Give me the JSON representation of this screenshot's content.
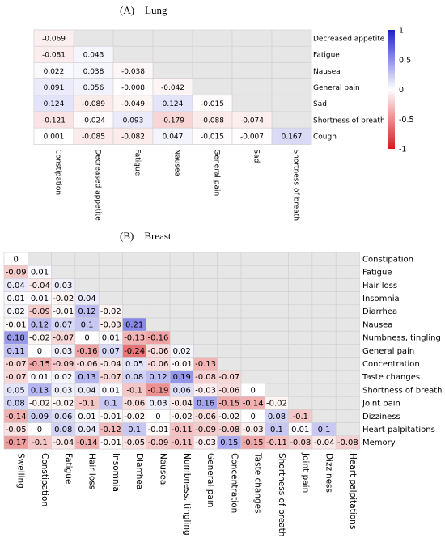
{
  "colors": {
    "negative": "#d7191c",
    "neutral": "#ffffff",
    "positive": "#1f1fd0",
    "empty_cell": "#e6e6e6",
    "cell_border": "#cfcfcf"
  },
  "chart_data": [
    {
      "type": "heatmap",
      "title": "(A)    Lung",
      "rows": [
        "Decreased appetite",
        "Fatigue",
        "Nausea",
        "General pain",
        "Sad",
        "Shortness of breath",
        "Cough"
      ],
      "columns": [
        "Constipation",
        "Decreased appetite",
        "Fatigue",
        "Nausea",
        "General pain",
        "Sad",
        "Shortness of breath"
      ],
      "values": [
        [
          -0.069,
          null,
          null,
          null,
          null,
          null,
          null
        ],
        [
          -0.081,
          0.043,
          null,
          null,
          null,
          null,
          null
        ],
        [
          0.022,
          0.038,
          -0.038,
          null,
          null,
          null,
          null
        ],
        [
          0.091,
          0.056,
          -0.008,
          -0.042,
          null,
          null,
          null
        ],
        [
          0.124,
          -0.089,
          -0.049,
          0.124,
          -0.015,
          null,
          null
        ],
        [
          -0.121,
          -0.024,
          0.093,
          -0.179,
          -0.088,
          -0.074,
          null
        ],
        [
          0.001,
          -0.085,
          -0.082,
          0.047,
          -0.015,
          -0.007,
          0.167
        ]
      ],
      "value_labels": [
        [
          "-0.069"
        ],
        [
          "-0.081",
          "0.043"
        ],
        [
          "0.022",
          "0.038",
          "-0.038"
        ],
        [
          "0.091",
          "0.056",
          "-0.008",
          "-0.042"
        ],
        [
          "0.124",
          "-0.089",
          "-0.049",
          "0.124",
          "-0.015"
        ],
        [
          "-0.121",
          "-0.024",
          "0.093",
          "-0.179",
          "-0.088",
          "-0.074"
        ],
        [
          "0.001",
          "-0.085",
          "-0.082",
          "0.047",
          "-0.015",
          "-0.007",
          "0.167"
        ]
      ],
      "colorbar": {
        "range": [
          -1,
          1
        ],
        "ticks": [
          1,
          0.5,
          0,
          -0.5,
          -1
        ],
        "tick_labels": [
          "1",
          "0.5",
          "0",
          "-0.5",
          "-1"
        ]
      },
      "grid": true,
      "legend": "right"
    },
    {
      "type": "heatmap",
      "title": "(B)    Breast",
      "rows": [
        "Constipation",
        "Fatigue",
        "Hair loss",
        "Insomnia",
        "Diarrhea",
        "Nausea",
        "Numbness, tingling",
        "General pain",
        "Concentration",
        "Taste changes",
        "Shortness of breath",
        "Joint pain",
        "Dizziness",
        "Heart palpitations",
        "Memory"
      ],
      "columns": [
        "Swelling",
        "Constipation",
        "Fatigue",
        "Hair loss",
        "Insomnia",
        "Diarrhea",
        "Nausea",
        "Numbness, tingling",
        "General pain",
        "Concentration",
        "Taste changes",
        "Shortness of breath",
        "Joint pain",
        "Dizziness",
        "Heart palpitations"
      ],
      "values": [
        [
          0
        ],
        [
          -0.09,
          0.01
        ],
        [
          0.04,
          -0.04,
          0.03
        ],
        [
          0.01,
          0.01,
          -0.02,
          0.04
        ],
        [
          0.02,
          -0.09,
          -0.01,
          0.12,
          -0.02
        ],
        [
          -0.01,
          0.12,
          0.07,
          0.1,
          -0.03,
          0.21
        ],
        [
          0.18,
          -0.02,
          -0.07,
          0,
          0.01,
          -0.13,
          -0.16
        ],
        [
          0.11,
          0,
          0.03,
          -0.16,
          0.07,
          -0.24,
          -0.06,
          0.02
        ],
        [
          -0.07,
          -0.15,
          -0.09,
          -0.06,
          -0.04,
          0.05,
          -0.06,
          -0.01,
          -0.13
        ],
        [
          -0.07,
          0.01,
          0.02,
          0.13,
          -0.07,
          0.08,
          0.12,
          0.19,
          -0.08,
          -0.07
        ],
        [
          0.05,
          0.13,
          0.03,
          0.04,
          0.01,
          -0.1,
          -0.19,
          0.06,
          -0.03,
          -0.06,
          0
        ],
        [
          0.08,
          -0.02,
          -0.02,
          -0.1,
          0.1,
          -0.06,
          0.03,
          -0.04,
          0.16,
          -0.15,
          -0.14,
          -0.02
        ],
        [
          -0.14,
          0.09,
          0.06,
          0.01,
          -0.01,
          -0.02,
          0,
          -0.02,
          -0.06,
          -0.02,
          0,
          0.08,
          -0.1
        ],
        [
          -0.05,
          0,
          0.08,
          0.04,
          -0.12,
          0.1,
          -0.01,
          -0.11,
          -0.09,
          -0.08,
          -0.03,
          0.1,
          0.01,
          0.1
        ],
        [
          -0.17,
          -0.1,
          -0.04,
          -0.14,
          -0.01,
          -0.05,
          -0.09,
          -0.11,
          -0.03,
          0.15,
          -0.15,
          -0.11,
          -0.08,
          -0.04,
          -0.08
        ]
      ],
      "value_labels": [
        [
          "0"
        ],
        [
          "-0.09",
          "0.01"
        ],
        [
          "0.04",
          "-0.04",
          "0.03"
        ],
        [
          "0.01",
          "0.01",
          "-0.02",
          "0.04"
        ],
        [
          "0.02",
          "-0.09",
          "-0.01",
          "0.12",
          "-0.02"
        ],
        [
          "-0.01",
          "0.12",
          "0.07",
          "0.1",
          "-0.03",
          "0.21"
        ],
        [
          "0.18",
          "-0.02",
          "-0.07",
          "0",
          "0.01",
          "-0.13",
          "-0.16"
        ],
        [
          "0.11",
          "0",
          "0.03",
          "-0.16",
          "0.07",
          "-0.24",
          "-0.06",
          "0.02"
        ],
        [
          "-0.07",
          "-0.15",
          "-0.09",
          "-0.06",
          "-0.04",
          "0.05",
          "-0.06",
          "-0.01",
          "-0.13"
        ],
        [
          "-0.07",
          "0.01",
          "0.02",
          "0.13",
          "-0.07",
          "0.08",
          "0.12",
          "0.19",
          "-0.08",
          "-0.07"
        ],
        [
          "0.05",
          "0.13",
          "0.03",
          "0.04",
          "0.01",
          "-0.1",
          "-0.19",
          "0.06",
          "-0.03",
          "-0.06",
          "0"
        ],
        [
          "0.08",
          "-0.02",
          "-0.02",
          "-0.1",
          "0.1",
          "-0.06",
          "0.03",
          "-0.04",
          "0.16",
          "-0.15",
          "-0.14",
          "-0.02"
        ],
        [
          "-0.14",
          "0.09",
          "0.06",
          "0.01",
          "-0.01",
          "-0.02",
          "0",
          "-0.02",
          "-0.06",
          "-0.02",
          "0",
          "0.08",
          "-0.1"
        ],
        [
          "-0.05",
          "0",
          "0.08",
          "0.04",
          "-0.12",
          "0.1",
          "-0.01",
          "-0.11",
          "-0.09",
          "-0.08",
          "-0.03",
          "0.1",
          "0.01",
          "0.1"
        ],
        [
          "-0.17",
          "-0.1",
          "-0.04",
          "-0.14",
          "-0.01",
          "-0.05",
          "-0.09",
          "-0.11",
          "-0.03",
          "0.15",
          "-0.15",
          "-0.11",
          "-0.08",
          "-0.04",
          "-0.08"
        ]
      ],
      "grid": true
    }
  ]
}
